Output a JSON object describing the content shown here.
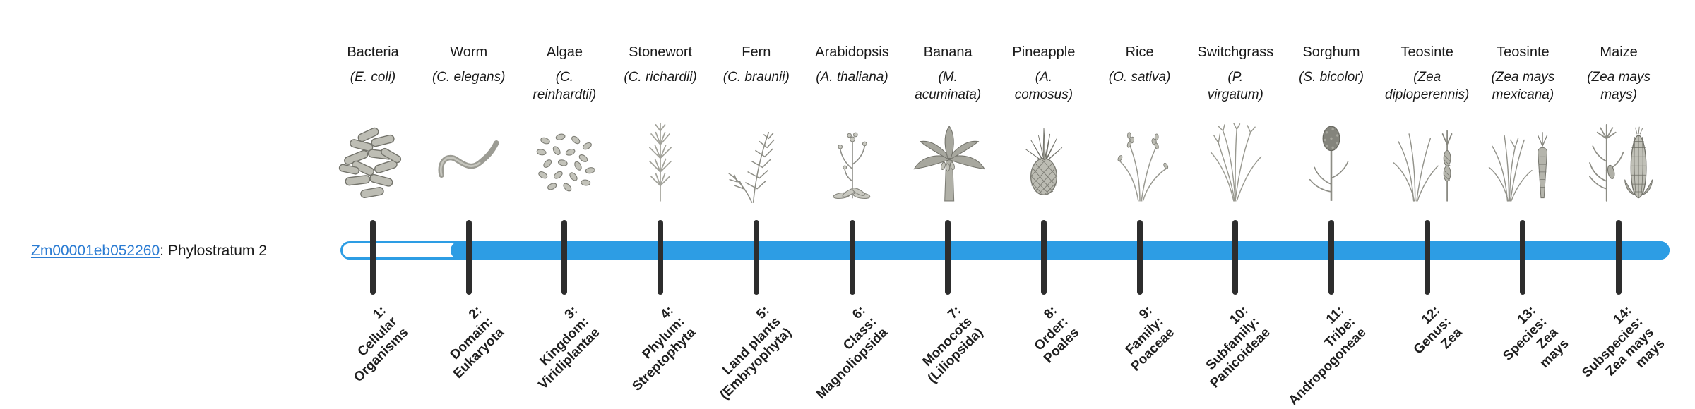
{
  "gene": {
    "id": "Zm00001eb052260",
    "suffix": ": Phylostratum 2",
    "phylostratum": 2
  },
  "timeline": {
    "bar_color": "#2d9de4",
    "tick_color": "#2d2d2d",
    "link_color": "#2b7cd3",
    "filled_from_stratum": 2,
    "total_strata": 14
  },
  "columns": [
    {
      "common": "Bacteria",
      "scientific": "(E. coli)",
      "icon": "bacteria-illustration",
      "stratum_label": "1:\nCellular\nOrganisms"
    },
    {
      "common": "Worm",
      "scientific": "(C. elegans)",
      "icon": "worm-illustration",
      "stratum_label": "2:\nDomain:\nEukaryota"
    },
    {
      "common": "Algae",
      "scientific": "(C.\nreinhardtii)",
      "icon": "algae-illustration",
      "stratum_label": "3:\nKingdom:\nViridiplantae"
    },
    {
      "common": "Stonewort",
      "scientific": "(C. richardii)",
      "icon": "stonewort-illustration",
      "stratum_label": "4:\nPhylum:\nStreptophyta"
    },
    {
      "common": "Fern",
      "scientific": "(C. braunii)",
      "icon": "fern-illustration",
      "stratum_label": "5:\nLand plants\n(Embryophyta)"
    },
    {
      "common": "Arabidopsis",
      "scientific": "(A. thaliana)",
      "icon": "arabidopsis-illustration",
      "stratum_label": "6:\nClass:\nMagnoliopsida"
    },
    {
      "common": "Banana",
      "scientific": "(M.\nacuminata)",
      "icon": "banana-illustration",
      "stratum_label": "7:\nMonocots\n(Liliopsida)"
    },
    {
      "common": "Pineapple",
      "scientific": "(A.\ncomosus)",
      "icon": "pineapple-illustration",
      "stratum_label": "8:\nOrder:\nPoales"
    },
    {
      "common": "Rice",
      "scientific": "(O. sativa)",
      "icon": "rice-illustration",
      "stratum_label": "9:\nFamily:\nPoaceae"
    },
    {
      "common": "Switchgrass",
      "scientific": "(P.\nvirgatum)",
      "icon": "switchgrass-illustration",
      "stratum_label": "10:\nSubfamily:\nPanicoideae"
    },
    {
      "common": "Sorghum",
      "scientific": "(S. bicolor)",
      "icon": "sorghum-illustration",
      "stratum_label": "11:\nTribe:\nAndropogoneae"
    },
    {
      "common": "Teosinte",
      "scientific": "(Zea\ndiploperennis)",
      "icon": "teosinte-diploperennis-illustration",
      "stratum_label": "12:\nGenus:\nZea"
    },
    {
      "common": "Teosinte",
      "scientific": "(Zea mays\nmexicana)",
      "icon": "teosinte-mexicana-illustration",
      "stratum_label": "13:\nSpecies:\nZea\nmays"
    },
    {
      "common": "Maize",
      "scientific": "(Zea mays\nmays)",
      "icon": "maize-illustration",
      "stratum_label": "14:\nSubspecies:\nZea mays\nmays"
    }
  ]
}
